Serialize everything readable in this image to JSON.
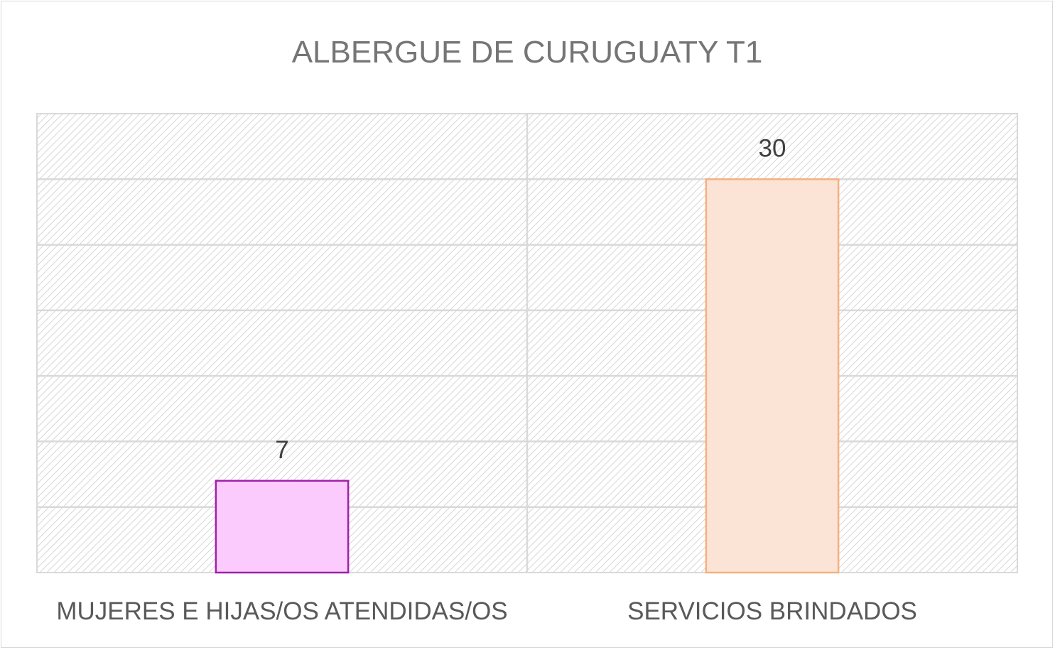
{
  "chart_data": {
    "type": "bar",
    "title": "ALBERGUE DE CURUGUATY T1",
    "categories": [
      "MUJERES E HIJAS/OS ATENDIDAS/OS",
      "SERVICIOS BRINDADOS"
    ],
    "values": [
      7,
      30
    ],
    "data_labels": [
      "7",
      "30"
    ],
    "ylim": [
      0,
      35
    ],
    "xlabel": "",
    "ylabel": "",
    "grid": true,
    "plot_background": "diagonal-hatch",
    "bar_colors": [
      "#fccbfd",
      "#fbe4d6"
    ],
    "bar_edge_colors": [
      "#a020a8",
      "#f4b183"
    ],
    "legend": "none"
  }
}
